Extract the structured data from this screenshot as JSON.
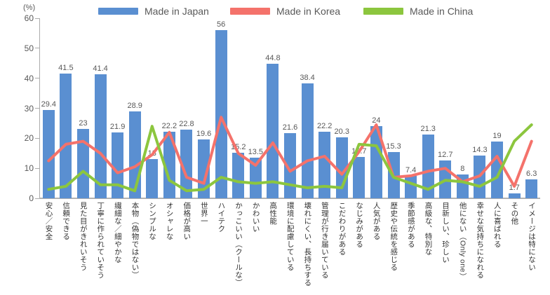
{
  "unit_label": "(%)",
  "legend": [
    {
      "label": "Made in Japan",
      "color": "#5a8fd1"
    },
    {
      "label": "Made in Korea",
      "color": "#f4726b"
    },
    {
      "label": "Made in China",
      "color": "#8cc63e"
    }
  ],
  "y_axis": {
    "ticks": [
      0,
      10,
      20,
      30,
      40,
      50,
      60
    ],
    "max": 60
  },
  "chart_data": {
    "type": "bar",
    "title": "",
    "xlabel": "",
    "ylabel": "(%)",
    "ylim": [
      0,
      60
    ],
    "grid": false,
    "legend_position": "top",
    "categories": [
      "安心／安全",
      "信頼できる",
      "見た目がきれいそう",
      "丁寧に作られていそう",
      "繊細な／細やかな",
      "本物（偽物ではない）",
      "シンプルな",
      "オシャレな",
      "価格が高い",
      "世界一",
      "ハイテク",
      "かっこいい（クールな）",
      "かわいい",
      "高性能",
      "環境に配慮している",
      "壊れにくい、長持ちする",
      "管理が行き届いている",
      "こだわりがある",
      "なじみがある",
      "人気がある",
      "歴史や伝統を感じる",
      "季節感がある",
      "高級な、特別な",
      "目新しい、珍しい",
      "他にない（Only one）",
      "幸せな気持ちになれる",
      "人に喜ばれる",
      "その他",
      "イメージは特にない"
    ],
    "series": [
      {
        "name": "Made in Japan",
        "type": "bar",
        "color": "#5a8fd1",
        "data_labels": true,
        "values": [
          29.4,
          41.5,
          23,
          41.4,
          21.9,
          28.9,
          13,
          22.2,
          22.8,
          19.6,
          56,
          15.2,
          13.5,
          44.8,
          21.6,
          38.4,
          22.2,
          20.3,
          13.7,
          24,
          15.3,
          7.4,
          21.3,
          12.7,
          8,
          14.3,
          19,
          1.7,
          6.3
        ]
      },
      {
        "name": "Made in Korea",
        "type": "line",
        "color": "#f4726b",
        "data_labels": false,
        "values": [
          12.5,
          18,
          19,
          15,
          8.5,
          10.5,
          14.5,
          22,
          7,
          5,
          27,
          15,
          11,
          18.5,
          9,
          12.5,
          14,
          8,
          15.5,
          24.5,
          7,
          7.5,
          9,
          10,
          5.5,
          7.5,
          14,
          4,
          19
        ]
      },
      {
        "name": "Made in China",
        "type": "line",
        "color": "#8cc63e",
        "data_labels": false,
        "values": [
          3,
          4,
          9,
          4.5,
          4.5,
          2.5,
          24,
          6,
          2.5,
          3,
          7,
          5.5,
          5,
          5.5,
          4.5,
          3.5,
          4,
          3.5,
          18,
          17.5,
          7,
          5,
          3,
          6,
          5.5,
          4,
          7,
          19,
          24.5
        ]
      }
    ]
  }
}
